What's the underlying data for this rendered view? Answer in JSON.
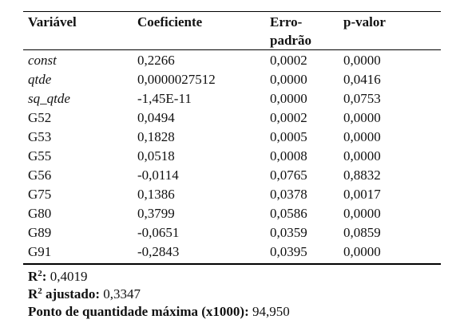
{
  "table": {
    "headers": [
      "Variável",
      "Coeficiente",
      "Erro-",
      "padrão",
      "p-valor"
    ],
    "rows": [
      {
        "var": "const",
        "coef": "0,2266",
        "se": "0,0002",
        "p": "0,0000"
      },
      {
        "var": "qtde",
        "coef": "0,0000027512",
        "se": "0,0000",
        "p": "0,0416"
      },
      {
        "var": "sq_qtde",
        "coef": "-1,45E-11",
        "se": "0,0000",
        "p": "0,0753"
      },
      {
        "var": "G52",
        "coef": "0,0494",
        "se": "0,0002",
        "p": "0,0000"
      },
      {
        "var": "G53",
        "coef": "0,1828",
        "se": "0,0005",
        "p": "0,0000"
      },
      {
        "var": "G55",
        "coef": "0,0518",
        "se": "0,0008",
        "p": "0,0000"
      },
      {
        "var": "G56",
        "coef": "-0,0114",
        "se": "0,0765",
        "p": "0,8832"
      },
      {
        "var": "G75",
        "coef": "0,1386",
        "se": "0,0378",
        "p": "0,0017"
      },
      {
        "var": "G80",
        "coef": "0,3799",
        "se": "0,0586",
        "p": "0,0000"
      },
      {
        "var": "G89",
        "coef": "-0,0651",
        "se": "0,0359",
        "p": "0,0859"
      },
      {
        "var": "G91",
        "coef": "-0,2843",
        "se": "0,0395",
        "p": "0,0000"
      }
    ]
  },
  "footer": {
    "r2_label": "R",
    "r2_sup": "2",
    "r2_colon": ":",
    "r2_value": "0,4019",
    "r2adj_label": "R",
    "r2adj_sup": "2",
    "r2adj_rest": "ajustado:",
    "r2adj_value": "0,3347",
    "ponto_label": "Ponto de quantidade máxima (x1000):",
    "ponto_value": "94,950"
  }
}
